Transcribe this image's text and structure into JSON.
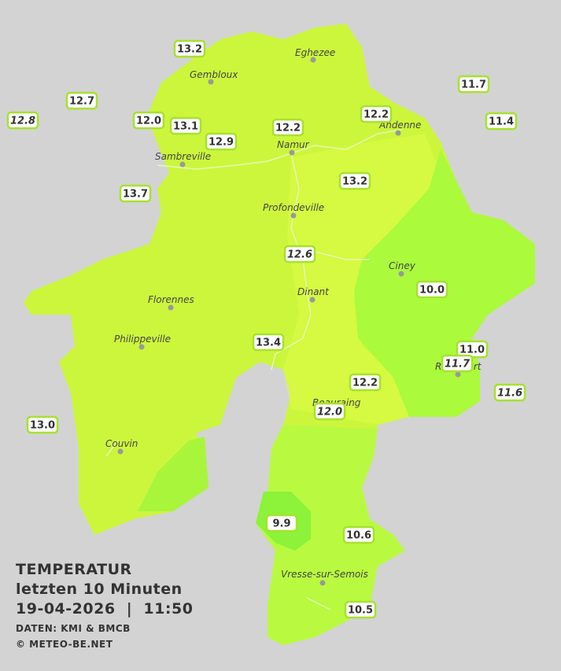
{
  "title": "TEMPERATUR",
  "subtitle": "letzten 10 Minuten",
  "timestamp": "19-04-2026  |  11:50",
  "source": "DATEN: KMI & BMCB",
  "copyright": "© METEO-BE.NET",
  "towns": [
    "Eghezee",
    "Gembloux",
    "Andenne",
    "Namur",
    "Sambreville",
    "Profondeville",
    "Ciney",
    "Dinant",
    "Florennes",
    "Philippeville",
    "Rochefort",
    "Beauraing",
    "Couvin",
    "Vresse-sur-Semois"
  ],
  "stations": [
    {
      "value": "13.2",
      "italic": false
    },
    {
      "value": "11.7",
      "italic": false
    },
    {
      "value": "12.7",
      "italic": false
    },
    {
      "value": "12.8",
      "italic": true
    },
    {
      "value": "12.0",
      "italic": false
    },
    {
      "value": "13.1",
      "italic": false
    },
    {
      "value": "12.2",
      "italic": false
    },
    {
      "value": "12.2",
      "italic": false
    },
    {
      "value": "11.4",
      "italic": false
    },
    {
      "value": "12.9",
      "italic": false
    },
    {
      "value": "13.7",
      "italic": false
    },
    {
      "value": "13.2",
      "italic": false
    },
    {
      "value": "12.6",
      "italic": true
    },
    {
      "value": "10.0",
      "italic": false
    },
    {
      "value": "13.4",
      "italic": false
    },
    {
      "value": "11.0",
      "italic": false
    },
    {
      "value": "11.7",
      "italic": true
    },
    {
      "value": "12.2",
      "italic": false
    },
    {
      "value": "11.6",
      "italic": true
    },
    {
      "value": "12.0",
      "italic": true
    },
    {
      "value": "13.0",
      "italic": false
    },
    {
      "value": "9.9",
      "italic": false
    },
    {
      "value": "10.6",
      "italic": false
    },
    {
      "value": "10.5",
      "italic": false
    }
  ]
}
